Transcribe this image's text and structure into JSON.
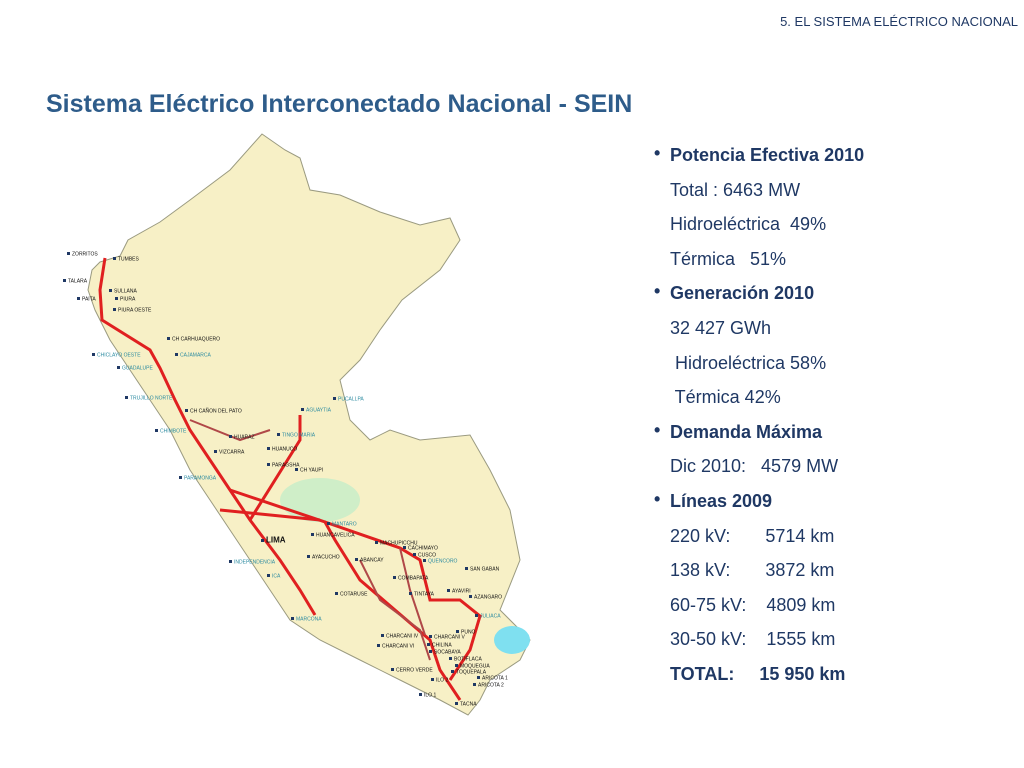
{
  "header": {
    "section": "5.  EL SISTEMA ELÉCTRICO NACIONAL",
    "title": "Sistema Eléctrico Interconectado Nacional - SEIN"
  },
  "bullets": [
    {
      "heading": "Potencia Efectiva 2010",
      "lines": [
        "Total : 6463 MW",
        "Hidroeléctrica  49%",
        "Térmica   51%"
      ]
    },
    {
      "heading": "Generación 2010",
      "lines": [
        "32 427 GWh",
        " Hidroeléctrica 58%",
        " Térmica 42%"
      ]
    },
    {
      "heading": "Demanda Máxima",
      "lines": [
        "Dic 2010:   4579 MW"
      ]
    },
    {
      "heading": "Líneas  2009",
      "lines": [
        "220 kV:       5714 km",
        "138 kV:       3872 km",
        "60-75 kV:    4809 km",
        "30-50 kV:    1555 km"
      ],
      "total": "TOTAL:     15 950 km"
    }
  ],
  "map": {
    "labels": [
      "ZORRITOS",
      "TUMBES",
      "TALARA",
      "SULLANA",
      "PAITA",
      "PIURA",
      "PIURA OESTE",
      "CH CARHUAQUERO",
      "CHICLAYO OESTE",
      "CAJAMARCA",
      "GUADALUPE",
      "TRUJILLO NORTE",
      "PUCALLPA",
      "CH CAÑON DEL PATO",
      "AGUAYTIA",
      "CHIMBOTE",
      "HUARAZ",
      "TINGO MARIA",
      "VIZCARRA",
      "HUANUCO",
      "PARAGSHA",
      "CH YAUPI",
      "PARAMONGA",
      "LIMA",
      "MANTARO",
      "HUANCAVELICA",
      "MACHUPICCHU",
      "CACHIMAYO",
      "CUSCO",
      "QUENCORO",
      "AYACUCHO",
      "ABANCAY",
      "INDEPENDENCIA",
      "ICA",
      "SAN GABAN",
      "COMBAPATA",
      "AYAVIRI",
      "TINTAYA",
      "COTARUSE",
      "AZANGARO",
      "MARCONA",
      "JULIACA",
      "PUNO",
      "CHARCANI IV",
      "CHARCANI V",
      "CHILINA",
      "CHARCANI VI",
      "SOCABAYA",
      "BOTIFLACA",
      "MOQUEGUA",
      "CERRO VERDE",
      "TOQUEPALA",
      "ARICOTA 1",
      "ILO 2",
      "ARICOTA 2",
      "ILO 1",
      "TACNA"
    ]
  }
}
